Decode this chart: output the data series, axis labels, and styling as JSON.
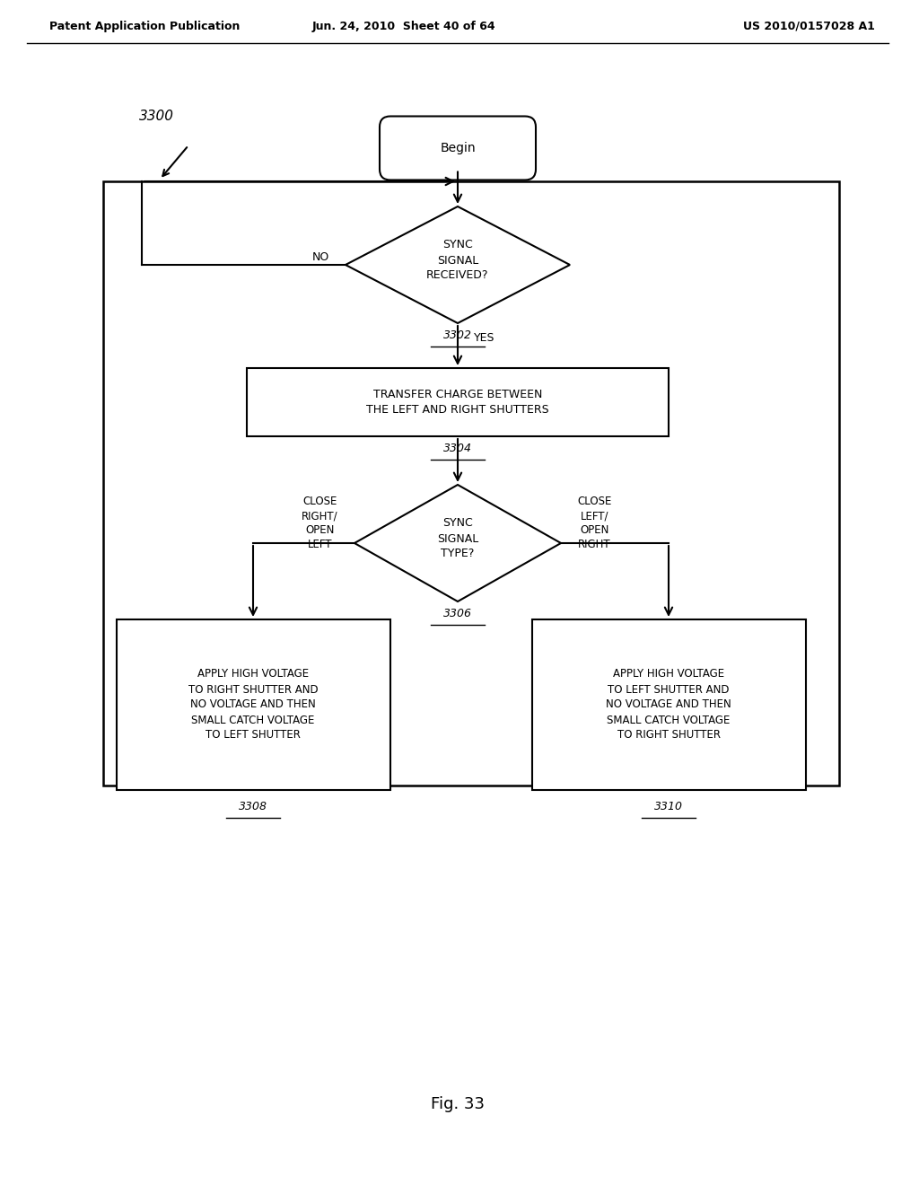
{
  "header_left": "Patent Application Publication",
  "header_mid": "Jun. 24, 2010  Sheet 40 of 64",
  "header_right": "US 2010/0157028 A1",
  "fig_label": "Fig. 33",
  "ref_3300": "3300",
  "begin_label": "Begin",
  "diamond1_line1": "SYNC",
  "diamond1_line2": "SIGNAL",
  "diamond1_line3": "RECEIVED?",
  "diamond1_ref": "3302",
  "rect1_line1": "TRANSFER CHARGE BETWEEN",
  "rect1_line2": "THE LEFT AND RIGHT SHUTTERS",
  "rect1_ref": "3304",
  "diamond2_line1": "SYNC",
  "diamond2_line2": "SIGNAL",
  "diamond2_line3": "TYPE?",
  "diamond2_ref": "3306",
  "rect2_line1": "APPLY HIGH VOLTAGE",
  "rect2_line2": "TO RIGHT SHUTTER AND",
  "rect2_line3": "NO VOLTAGE AND THEN",
  "rect2_line4": "SMALL CATCH VOLTAGE",
  "rect2_line5": "TO LEFT SHUTTER",
  "rect2_ref": "3308",
  "rect3_line1": "APPLY HIGH VOLTAGE",
  "rect3_line2": "TO LEFT SHUTTER AND",
  "rect3_line3": "NO VOLTAGE AND THEN",
  "rect3_line4": "SMALL CATCH VOLTAGE",
  "rect3_line5": "TO RIGHT SHUTTER",
  "rect3_ref": "3310",
  "no_label": "NO",
  "yes_label": "YES",
  "close_right_label": "CLOSE\nRIGHT/\nOPEN\nLEFT",
  "close_left_label": "CLOSE\nLEFT/\nOPEN\nRIGHT",
  "bg_color": "#ffffff",
  "text_color": "#000000",
  "line_color": "#000000"
}
